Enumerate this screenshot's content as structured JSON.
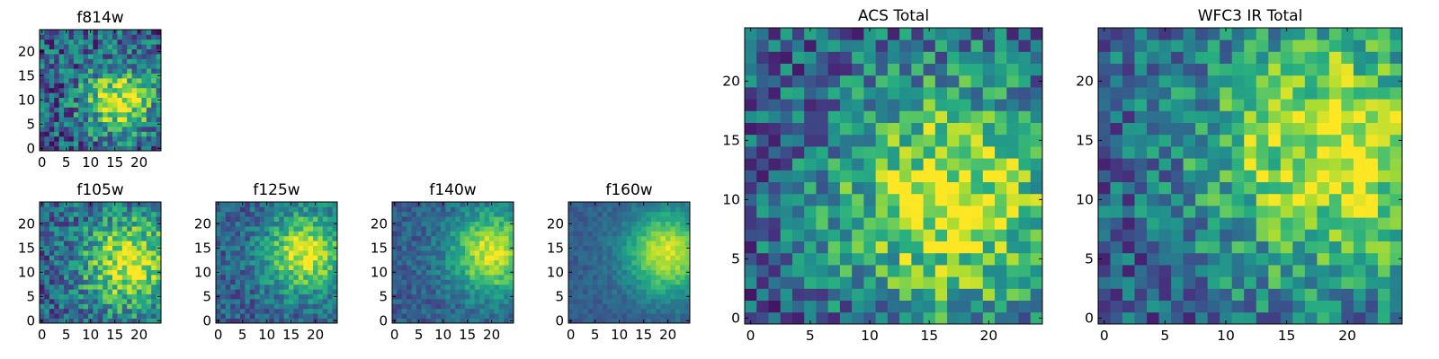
{
  "chart_data": [
    {
      "type": "heatmap",
      "title": "f814w",
      "colormap": "viridis",
      "nx": 25,
      "ny": 25,
      "xlim": [
        0,
        24
      ],
      "ylim": [
        0,
        24
      ],
      "xticks": [
        0,
        5,
        10,
        15,
        20
      ],
      "yticks": [
        0,
        5,
        10,
        15,
        20
      ],
      "peak": [
        16,
        10
      ],
      "sigma": 5,
      "noise": 0.6,
      "seed": 11
    },
    {
      "type": "heatmap",
      "title": "f105w",
      "colormap": "viridis",
      "nx": 25,
      "ny": 25,
      "xlim": [
        0,
        24
      ],
      "ylim": [
        0,
        24
      ],
      "xticks": [
        0,
        5,
        10,
        15,
        20
      ],
      "yticks": [
        0,
        5,
        10,
        15,
        20
      ],
      "peak": [
        18,
        12
      ],
      "sigma": 7,
      "noise": 0.5,
      "seed": 23
    },
    {
      "type": "heatmap",
      "title": "f125w",
      "colormap": "viridis",
      "nx": 25,
      "ny": 25,
      "xlim": [
        0,
        24
      ],
      "ylim": [
        0,
        24
      ],
      "xticks": [
        0,
        5,
        10,
        15,
        20
      ],
      "yticks": [
        0,
        5,
        10,
        15,
        20
      ],
      "peak": [
        18,
        14
      ],
      "sigma": 6,
      "noise": 0.35,
      "seed": 37
    },
    {
      "type": "heatmap",
      "title": "f140w",
      "colormap": "viridis",
      "nx": 25,
      "ny": 25,
      "xlim": [
        0,
        24
      ],
      "ylim": [
        0,
        24
      ],
      "xticks": [
        0,
        5,
        10,
        15,
        20
      ],
      "yticks": [
        0,
        5,
        10,
        15,
        20
      ],
      "peak": [
        20,
        14
      ],
      "sigma": 6,
      "noise": 0.25,
      "seed": 41
    },
    {
      "type": "heatmap",
      "title": "f160w",
      "colormap": "viridis",
      "nx": 25,
      "ny": 25,
      "xlim": [
        0,
        24
      ],
      "ylim": [
        0,
        24
      ],
      "xticks": [
        0,
        5,
        10,
        15,
        20
      ],
      "yticks": [
        0,
        5,
        10,
        15,
        20
      ],
      "peak": [
        20,
        14
      ],
      "sigma": 6,
      "noise": 0.15,
      "seed": 53
    },
    {
      "type": "heatmap",
      "title": "ACS Total",
      "colormap": "viridis",
      "nx": 25,
      "ny": 25,
      "xlim": [
        0,
        24
      ],
      "ylim": [
        0,
        24
      ],
      "xticks": [
        0,
        5,
        10,
        15,
        20
      ],
      "yticks": [
        0,
        5,
        10,
        15,
        20
      ],
      "peak": [
        17,
        10
      ],
      "sigma": 7,
      "noise": 0.55,
      "seed": 67
    },
    {
      "type": "heatmap",
      "title": "WFC3 IR Total",
      "colormap": "viridis",
      "nx": 25,
      "ny": 25,
      "xlim": [
        0,
        24
      ],
      "ylim": [
        0,
        24
      ],
      "xticks": [
        0,
        5,
        10,
        15,
        20
      ],
      "yticks": [
        0,
        5,
        10,
        15,
        20
      ],
      "peak": [
        19,
        14
      ],
      "sigma": 8,
      "noise": 0.5,
      "seed": 79
    }
  ]
}
